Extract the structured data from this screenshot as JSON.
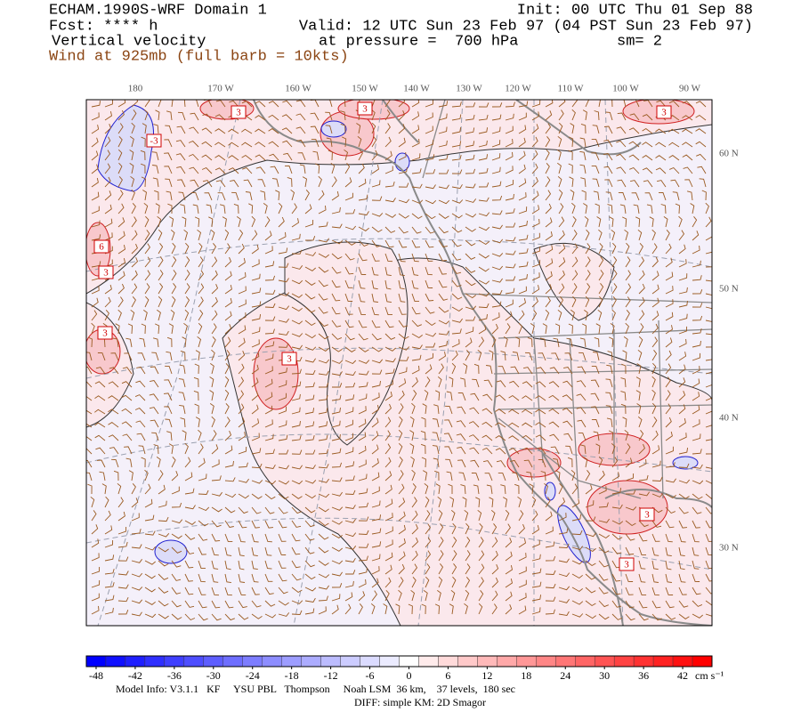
{
  "header": {
    "title": "ECHAM.1990S-WRF Domain 1",
    "forecast": "Fcst: **** h",
    "field": "Vertical velocity",
    "wind": "Wind at 925mb (full barb = 10kts)",
    "init": "Init: 00 UTC Thu 01 Sep 88",
    "valid": "Valid: 12 UTC Sun 23 Feb 97 (04 PST Sun 23 Feb 97)",
    "level": "at pressure =  700 hPa",
    "smoothing": "sm= 2"
  },
  "map": {
    "lon_labels": [
      "180",
      "170 W",
      "160 W",
      "150 W",
      "140 W",
      "130 W",
      "120 W",
      "110 W",
      "100 W",
      "90 W"
    ],
    "lat_labels": [
      "60 N",
      "50 N",
      "40 N",
      "30 N"
    ],
    "contour_labels": [
      "3",
      "3",
      "-3",
      "6",
      "3",
      "3",
      "3",
      "3",
      "3",
      "3"
    ]
  },
  "colorbar": {
    "lim": [
      -49.5,
      46.5
    ],
    "ticks": [
      -48,
      -42,
      -36,
      -30,
      -24,
      -18,
      -12,
      -6,
      0,
      6,
      12,
      18,
      24,
      30,
      36,
      42
    ],
    "colors": [
      "#0000ff",
      "#1010ff",
      "#1f1fff",
      "#2f2fff",
      "#3f3fff",
      "#4e4eff",
      "#5e5eff",
      "#6e6eff",
      "#7d7dff",
      "#8d8dff",
      "#9d9dff",
      "#acacff",
      "#bcbcff",
      "#ccccff",
      "#dbdbff",
      "#ebebff",
      "#ffffff",
      "#ffebeb",
      "#ffdada",
      "#ffc9c9",
      "#ffb9b9",
      "#ffa8a8",
      "#ff9797",
      "#ff8686",
      "#ff7676",
      "#ff6565",
      "#ff5454",
      "#ff4343",
      "#ff3232",
      "#ff2222",
      "#ff1111",
      "#ff0000"
    ],
    "unit": "cm s⁻¹"
  },
  "footer": {
    "model": "Model Info: V3.1.1   KF     YSU PBL   Thompson     Noah LSM  36 km,    37 levels,  180 sec",
    "diff": "DIFF: simple KM: 2D Smagor"
  }
}
